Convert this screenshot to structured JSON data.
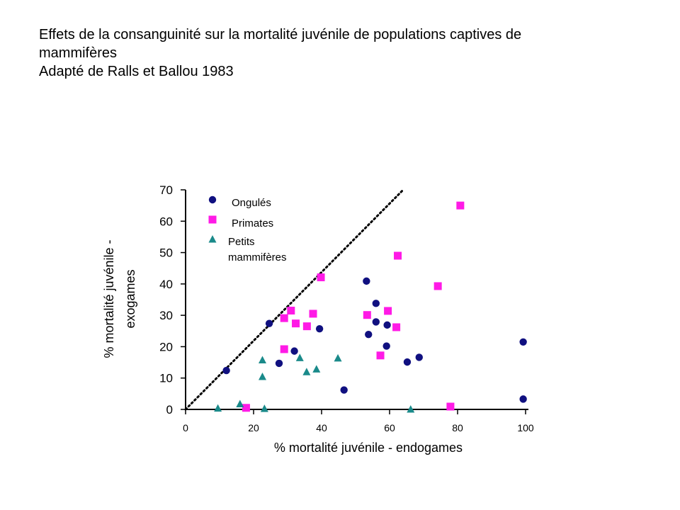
{
  "title_lines": [
    "Effets de la consanguinité sur la mortalité juvénile de populations captives de",
    "mammifères",
    "Adapté de Ralls et Ballou 1983"
  ],
  "colors": {
    "ongules": "#101080",
    "primates": "#ff1ae6",
    "petits": "#1a8a8a",
    "axis": "#000000"
  },
  "chart_data": {
    "type": "scatter",
    "title": "Effets de la consanguinité sur la mortalité juvénile de populations captives de mammifères",
    "subtitle": "Adapté de Ralls et Ballou 1983",
    "xlabel": "% mortalité juvénile - endogames",
    "ylabel_lines": [
      "% mortalité juvénile -",
      "exogames"
    ],
    "xlim": [
      0,
      100
    ],
    "ylim": [
      0,
      70
    ],
    "xticks": [
      0,
      20,
      40,
      60,
      80,
      100
    ],
    "yticks": [
      0,
      10,
      20,
      30,
      40,
      50,
      60,
      70
    ],
    "grid": false,
    "legend_position": "top-left",
    "reference_line": {
      "style": "dotted",
      "from": [
        0,
        0
      ],
      "to": [
        64,
        70
      ]
    },
    "series": [
      {
        "name": "Ongulés",
        "marker": "circle",
        "points": [
          [
            12,
            12.4
          ],
          [
            24.6,
            27.4
          ],
          [
            27.5,
            14.7
          ],
          [
            32,
            18.6
          ],
          [
            39.4,
            25.7
          ],
          [
            46.6,
            6.2
          ],
          [
            53.2,
            40.9
          ],
          [
            53.8,
            23.9
          ],
          [
            56,
            33.8
          ],
          [
            56,
            27.9
          ],
          [
            59.3,
            26.9
          ],
          [
            59.1,
            20.2
          ],
          [
            65.2,
            15.1
          ],
          [
            68.7,
            16.6
          ],
          [
            99.3,
            21.5
          ],
          [
            99.3,
            3.3
          ]
        ]
      },
      {
        "name": "Primates",
        "marker": "square",
        "points": [
          [
            17.8,
            0.5
          ],
          [
            29,
            19.2
          ],
          [
            29,
            29.1
          ],
          [
            31,
            31.5
          ],
          [
            32.4,
            27.4
          ],
          [
            35.7,
            26.5
          ],
          [
            37.5,
            30.5
          ],
          [
            39.8,
            42.1
          ],
          [
            53.4,
            30.1
          ],
          [
            57.3,
            17.2
          ],
          [
            59.5,
            31.4
          ],
          [
            62,
            26.2
          ],
          [
            62.4,
            49
          ],
          [
            74.2,
            39.3
          ],
          [
            77.9,
            0.9
          ],
          [
            80.8,
            65
          ]
        ]
      },
      {
        "name": "Petits mammifères",
        "marker": "triangle",
        "points": [
          [
            9.5,
            0.3
          ],
          [
            16,
            1.7
          ],
          [
            22.6,
            15.7
          ],
          [
            22.6,
            10.4
          ],
          [
            23.2,
            0.2
          ],
          [
            33.6,
            16.4
          ],
          [
            35.6,
            11.9
          ],
          [
            38.5,
            12.8
          ],
          [
            44.8,
            16.3
          ],
          [
            66.2,
            0
          ]
        ]
      }
    ]
  }
}
